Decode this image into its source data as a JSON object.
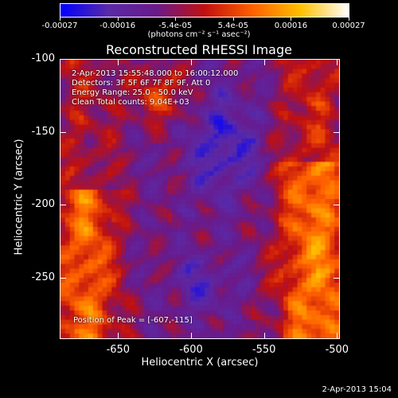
{
  "chart_data": {
    "type": "heatmap",
    "title": "Reconstructed RHESSI Image",
    "xlabel": "Heliocentric X (arcsec)",
    "ylabel": "Heliocentric Y (arcsec)",
    "xlim": [
      -690,
      -498
    ],
    "ylim": [
      -292,
      -100
    ],
    "x_ticks": [
      "-650",
      "-600",
      "-550",
      "-500"
    ],
    "y_ticks": [
      "-100",
      "-150",
      "-200",
      "-250"
    ],
    "colorbar": {
      "range": [
        -0.00027,
        0.00027
      ],
      "ticks": [
        "-0.00027",
        "-0.00016",
        "-5.4e-05",
        "5.4e-05",
        "0.00016",
        "0.00027"
      ],
      "units": "(photons cm⁻² s⁻¹ asec⁻²)",
      "colormap": [
        "#0000ff",
        "#5a2aa8",
        "#6a1a8a",
        "#c01010",
        "#ff6000",
        "#ffc000",
        "#ffffff"
      ]
    },
    "annotations": [
      "2-Apr-2013 15:55:48.000 to 16:00:12.000",
      "Detectors: 3F 5F 6F 7F 8F 9F, Att 0",
      "Energy Range: 25.0 - 50.0 keV",
      "Clean     Total counts: 9.04E+03",
      "Position of Peak = [-607,-115]"
    ]
  },
  "footer_timestamp": "2-Apr-2013 15:04"
}
